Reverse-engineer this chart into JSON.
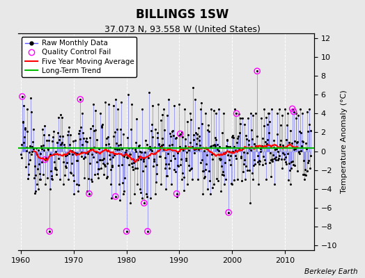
{
  "title": "BILLINGS 1SW",
  "subtitle": "37.073 N, 93.558 W (United States)",
  "ylabel": "Temperature Anomaly (°C)",
  "credit": "Berkeley Earth",
  "xlim": [
    1959.5,
    2015.5
  ],
  "ylim": [
    -10.5,
    12.5
  ],
  "yticks": [
    -10,
    -8,
    -6,
    -4,
    -2,
    0,
    2,
    4,
    6,
    8,
    10,
    12
  ],
  "xticks": [
    1960,
    1970,
    1980,
    1990,
    2000,
    2010
  ],
  "bg_color": "#e8e8e8",
  "raw_line_color": "#5555ff",
  "raw_dot_color": "black",
  "qc_color": "magenta",
  "moving_avg_color": "red",
  "trend_color": "#00bb00",
  "trend_y": 0.3,
  "seed": 12345,
  "n_years": 55,
  "start_year": 1960,
  "title_fontsize": 12,
  "subtitle_fontsize": 9,
  "legend_fontsize": 7.5,
  "ylabel_fontsize": 8,
  "tick_fontsize": 8
}
